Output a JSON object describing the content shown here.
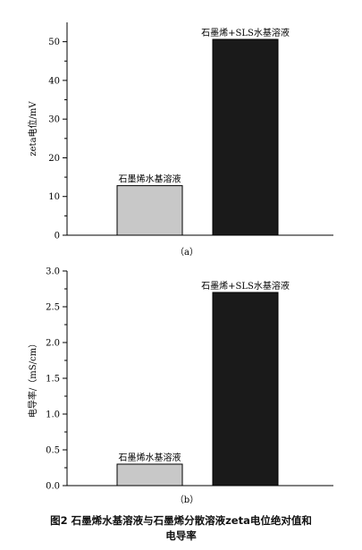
{
  "chart_data": [
    {
      "type": "bar",
      "panel_label": "（a）",
      "ylabel": "zeta电位/mV",
      "ylim": [
        0,
        55
      ],
      "yticks": [
        0,
        10,
        20,
        30,
        40,
        50
      ],
      "ytick_labels": [
        "0",
        "10",
        "20",
        "30",
        "40",
        "50"
      ],
      "categories": [
        "石墨烯水基溶液",
        "石墨烯+SLS水基溶液"
      ],
      "values": [
        12.8,
        50.6
      ],
      "colors": [
        "#c8c8c8",
        "#1a1a1a"
      ],
      "grid": false
    },
    {
      "type": "bar",
      "panel_label": "（b）",
      "ylabel": "电导率/（mS/cm）",
      "ylim": [
        0,
        3.0
      ],
      "yticks": [
        0.0,
        0.5,
        1.0,
        1.5,
        2.0,
        2.5,
        3.0
      ],
      "ytick_labels": [
        "0.0",
        "0.5",
        "1.0",
        "1.5",
        "2.0",
        "2.5",
        "3.0"
      ],
      "categories": [
        "石墨烯水基溶液",
        "石墨烯+SLS水基溶液"
      ],
      "values": [
        0.3,
        2.7
      ],
      "colors": [
        "#c8c8c8",
        "#1a1a1a"
      ],
      "grid": false
    }
  ],
  "caption": {
    "line1": "图2   石墨烯水基溶液与石墨烯分散溶液zeta电位绝对值和",
    "line2": "电导率"
  }
}
